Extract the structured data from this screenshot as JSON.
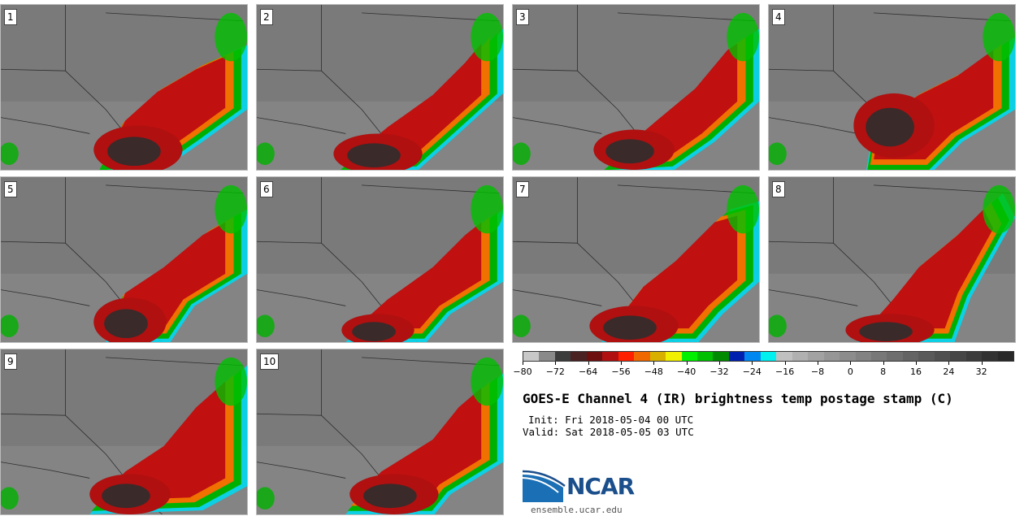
{
  "panels": [
    {
      "label": "1"
    },
    {
      "label": "2"
    },
    {
      "label": "3"
    },
    {
      "label": "4"
    },
    {
      "label": "5"
    },
    {
      "label": "6"
    },
    {
      "label": "7"
    },
    {
      "label": "8"
    },
    {
      "label": "9"
    },
    {
      "label": "10"
    }
  ],
  "colorbar": {
    "colors": [
      "#c8c8c8",
      "#8a8a8a",
      "#3c3c3c",
      "#4a2222",
      "#6e0f0f",
      "#b01010",
      "#ff2000",
      "#f06800",
      "#d8b000",
      "#f0f000",
      "#00f000",
      "#00c000",
      "#008a00",
      "#0020b0",
      "#0088f0",
      "#00f0f0",
      "#c0c0c0",
      "#b0b0b0",
      "#a2a2a2",
      "#969696",
      "#8c8c8c",
      "#828282",
      "#787878",
      "#6e6e6e",
      "#646464",
      "#5a5a5a",
      "#505050",
      "#464646",
      "#3c3c3c",
      "#323232",
      "#282828"
    ],
    "min": -80,
    "max": 40,
    "tick_labels": [
      "−80",
      "−72",
      "−64",
      "−56",
      "−48",
      "−40",
      "−32",
      "−24",
      "−16",
      "−8",
      "0",
      "8",
      "16",
      "24",
      "32"
    ],
    "tick_values": [
      -80,
      -72,
      -64,
      -56,
      -48,
      -40,
      -32,
      -24,
      -16,
      -8,
      0,
      8,
      16,
      24,
      32
    ]
  },
  "title": "GOES-E Channel 4 (IR) brightness temp postage stamp (C)",
  "init_text": "Init: Fri 2018-05-04 00 UTC",
  "valid_text": "Valid: Sat 2018-05-05 03 UTC",
  "logo_text": "NCAR",
  "website": "ensemble.ucar.edu"
}
